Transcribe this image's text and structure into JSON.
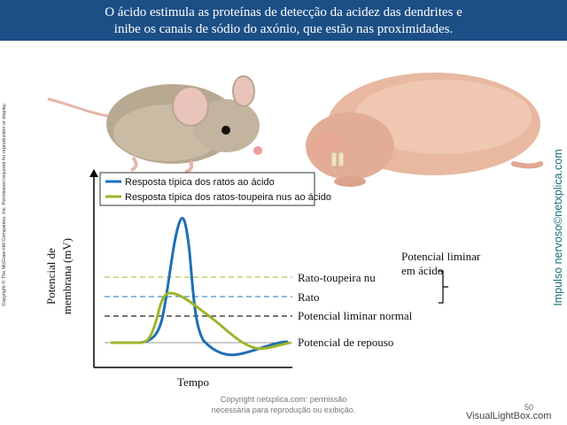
{
  "header": {
    "line1": "O ácido estimula as proteínas de detecção da acidez das dendrites e",
    "line2": "inibe os canais de sódio do axónio, que estão nas proximidades."
  },
  "side_copyright": "Copyright © The McGraw-Hill Companies, Inc. Permission required for reproduction or display.",
  "side_brand": "Impulso nervoso©netxplica.com",
  "footer": {
    "line1": "Copyright netxplica.com: permissão",
    "line2": "necessária para reprodução ou exibição."
  },
  "page_number": "50",
  "watermark": "VisualLightBox.com",
  "legend": {
    "item1": "Resposta típica dos ratos ao ácido",
    "item2": "Resposta típica dos ratos-toupeira nus ao ácido"
  },
  "axes": {
    "y_label_line1": "Potencial de",
    "y_label_line2": "membrana (mV)",
    "x_label": "Tempo"
  },
  "thresholds": {
    "mole_rat": "Rato-toupeira nu",
    "rat": "Rato",
    "normal": "Potencial liminar normal",
    "resting": "Potencial de repouso",
    "acid_threshold_line1": "Potencial liminar",
    "acid_threshold_line2": "em ácido"
  },
  "colors": {
    "banner": "#1c4f86",
    "rat_curve": "#1f6fb5",
    "mole_rat_curve": "#9cb52a",
    "mole_rat_dashed": "#b9c25a",
    "rat_dashed": "#4a90c8"
  },
  "images": {
    "mouse": "mouse-photo",
    "naked_mole_rat": "naked-mole-rat-photo"
  }
}
